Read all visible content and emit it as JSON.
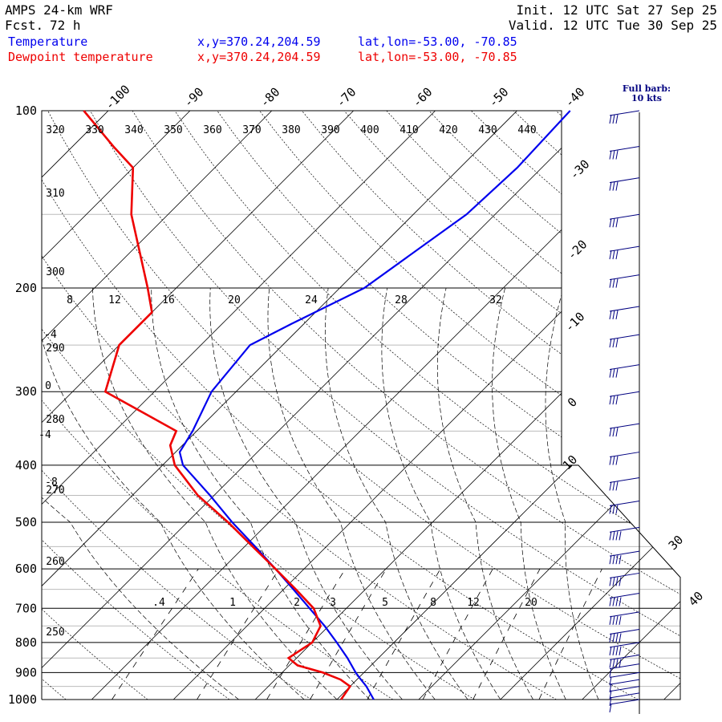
{
  "header": {
    "model": "AMPS 24-km WRF",
    "fcst_label": "Fcst.",
    "fcst_value": "72 h",
    "init": "Init. 12 UTC Sat 27 Sep 25",
    "valid": "Valid. 12 UTC Tue 30 Sep 25",
    "temp_label": "Temperature",
    "dew_label": "Dewpoint temperature",
    "temp_xy": "x,y=370.24,204.59",
    "temp_latlon": "lat,lon=-53.00, -70.85",
    "dew_xy": "x,y=370.24,204.59",
    "dew_latlon": "lat,lon=-53.00, -70.85",
    "barb_note_1": "Full barb:",
    "barb_note_2": "10 kts"
  },
  "chart_data": {
    "type": "line",
    "pressure_levels": [
      100,
      200,
      300,
      400,
      500,
      600,
      700,
      800,
      900,
      1000
    ],
    "temp_axis_labels": [
      "-100",
      "-90",
      "-80",
      "-70",
      "-60",
      "-50",
      "-40",
      "-30",
      "-20",
      "-10",
      "0",
      "10",
      "30",
      "40"
    ],
    "theta_labels": [
      "320",
      "330",
      "340",
      "350",
      "360",
      "370",
      "380",
      "390",
      "400",
      "410",
      "420",
      "430",
      "440",
      "310",
      "300",
      "290",
      "280",
      "270",
      "260",
      "250"
    ],
    "thetae_labels": [
      "8",
      "12",
      "16",
      "20",
      "24",
      "28",
      "32"
    ],
    "left_small_labels": [
      "-4",
      "0",
      "-4",
      "-8"
    ],
    "mixing_ratio_labels": [
      ".4",
      "1",
      "2",
      "3",
      "5",
      "8",
      "12",
      "20"
    ],
    "colors": {
      "temperature": "#0000ee",
      "dewpoint": "#ee0000",
      "barbs": "#000080"
    },
    "series": [
      {
        "name": "Temperature",
        "p": [
          1000,
          950,
          925,
          900,
          850,
          800,
          750,
          700,
          650,
          600,
          550,
          500,
          450,
          400,
          380,
          350,
          300,
          250,
          230,
          200,
          150,
          125,
          100
        ],
        "t": [
          4.5,
          2,
          0.5,
          -1,
          -3.8,
          -7,
          -10.5,
          -14.5,
          -18.8,
          -23.5,
          -28.7,
          -34.5,
          -40.5,
          -47.5,
          -49.5,
          -50.5,
          -53,
          -54,
          -51.5,
          -47,
          -43.5,
          -43,
          -43.5
        ]
      },
      {
        "name": "Dewpoint temperature",
        "p": [
          1000,
          950,
          925,
          900,
          875,
          850,
          800,
          750,
          700,
          650,
          600,
          550,
          500,
          450,
          400,
          370,
          350,
          300,
          250,
          220,
          200,
          150,
          125,
          115,
          100
        ],
        "td": [
          0.5,
          0,
          -2,
          -5,
          -9,
          -11,
          -10,
          -11,
          -14,
          -18.5,
          -23.5,
          -29,
          -35,
          -42,
          -48.5,
          -51.5,
          -52.5,
          -66,
          -70,
          -70,
          -73.5,
          -84.5,
          -90,
          -95,
          -103
        ]
      }
    ],
    "wind_barb_levels": [
      100,
      115,
      130,
      150,
      170,
      190,
      215,
      240,
      270,
      300,
      340,
      380,
      420,
      460,
      510,
      560,
      610,
      660,
      710,
      760,
      800,
      840,
      870,
      900,
      925,
      950,
      975,
      1000
    ]
  }
}
